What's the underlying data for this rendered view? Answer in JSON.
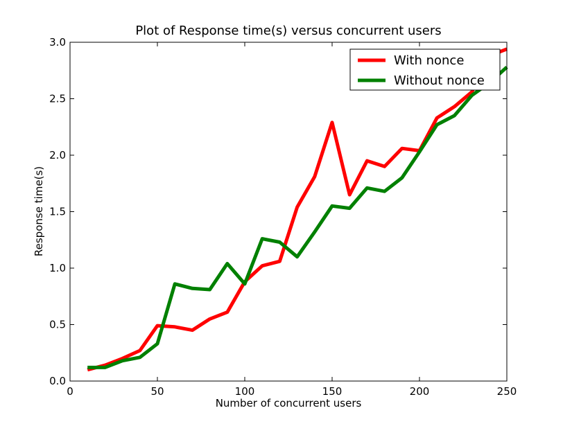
{
  "chart_data": {
    "type": "line",
    "title": "Plot of Response time(s) versus concurrent users",
    "xlabel": "Number of concurrent users",
    "ylabel": "Response time(s)",
    "xlim": [
      0,
      250
    ],
    "ylim": [
      0.0,
      3.0
    ],
    "x_ticks": [
      "0",
      "50",
      "100",
      "150",
      "200",
      "250"
    ],
    "x_tick_values": [
      0,
      50,
      100,
      150,
      200,
      250
    ],
    "y_ticks": [
      "0.0",
      "0.5",
      "1.0",
      "1.5",
      "2.0",
      "2.5",
      "3.0"
    ],
    "y_tick_values": [
      0.0,
      0.5,
      1.0,
      1.5,
      2.0,
      2.5,
      3.0
    ],
    "grid": false,
    "legend_position": "top-right",
    "x": [
      10,
      20,
      30,
      40,
      50,
      60,
      70,
      80,
      90,
      100,
      110,
      120,
      130,
      140,
      150,
      160,
      170,
      180,
      190,
      200,
      210,
      220,
      230,
      240,
      250
    ],
    "series": [
      {
        "name": "With nonce",
        "color": "#ff0000",
        "values": [
          0.1,
          0.14,
          0.2,
          0.27,
          0.49,
          0.48,
          0.45,
          0.55,
          0.61,
          0.88,
          1.02,
          1.06,
          1.54,
          1.81,
          2.29,
          1.65,
          1.95,
          1.9,
          2.06,
          2.04,
          2.33,
          2.43,
          2.56,
          2.88,
          2.94
        ]
      },
      {
        "name": "Without nonce",
        "color": "#008000",
        "values": [
          0.12,
          0.12,
          0.18,
          0.21,
          0.33,
          0.86,
          0.82,
          0.81,
          1.04,
          0.86,
          1.26,
          1.23,
          1.1,
          1.32,
          1.55,
          1.53,
          1.71,
          1.68,
          1.8,
          2.03,
          2.27,
          2.35,
          2.53,
          2.64,
          2.78
        ]
      }
    ]
  }
}
